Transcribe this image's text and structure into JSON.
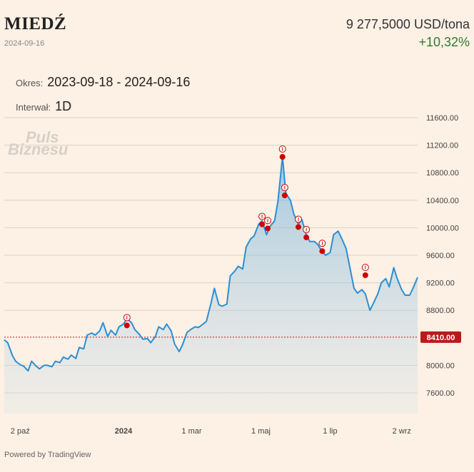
{
  "header": {
    "name": "MIEDŹ",
    "date": "2024-09-16",
    "price": "9 277,5000 USD/tona",
    "change": "+10,32%"
  },
  "controls": {
    "period_label": "Okres:",
    "period_value": "2023-09-18 - 2024-09-16",
    "interval_label": "Interwał:",
    "interval_value": "1D"
  },
  "watermark": {
    "line1": "Puls",
    "line2": "Biznesu"
  },
  "footer": "Powered by TradingView",
  "colors": {
    "line": "#2a8fd6",
    "marker": "#cc0000",
    "reference": "#b71c1c",
    "background": "#fdf0e4"
  },
  "chart_data": {
    "type": "area",
    "y_ticks": [
      "11600.00",
      "11200.00",
      "10800.00",
      "10400.00",
      "10000.00",
      "9600.00",
      "9200.00",
      "8800.00",
      "8000.00",
      "7600.00"
    ],
    "x_ticks": [
      {
        "label": "2 paź",
        "date": "2023-10-02"
      },
      {
        "label": "2024",
        "date": "2024-01-01"
      },
      {
        "label": "1 mar",
        "date": "2024-03-01"
      },
      {
        "label": "1 maj",
        "date": "2024-05-01"
      },
      {
        "label": "1 lip",
        "date": "2024-07-01"
      },
      {
        "label": "2 wrz",
        "date": "2024-09-02"
      }
    ],
    "reference_line": {
      "value": 8410,
      "label": "8410.00"
    },
    "ylim": [
      7300,
      11600
    ],
    "xlim": [
      "2023-09-18",
      "2024-09-16"
    ],
    "grid": true,
    "series": [
      {
        "points": [
          [
            "2023-09-18",
            8370
          ],
          [
            "2023-09-21",
            8330
          ],
          [
            "2023-09-25",
            8150
          ],
          [
            "2023-09-28",
            8060
          ],
          [
            "2023-10-02",
            8010
          ],
          [
            "2023-10-05",
            7990
          ],
          [
            "2023-10-09",
            7920
          ],
          [
            "2023-10-12",
            8060
          ],
          [
            "2023-10-16",
            7990
          ],
          [
            "2023-10-19",
            7950
          ],
          [
            "2023-10-23",
            8000
          ],
          [
            "2023-10-26",
            8000
          ],
          [
            "2023-10-30",
            7980
          ],
          [
            "2023-11-02",
            8060
          ],
          [
            "2023-11-06",
            8040
          ],
          [
            "2023-11-09",
            8120
          ],
          [
            "2023-11-13",
            8090
          ],
          [
            "2023-11-16",
            8150
          ],
          [
            "2023-11-20",
            8100
          ],
          [
            "2023-11-23",
            8260
          ],
          [
            "2023-11-27",
            8240
          ],
          [
            "2023-11-30",
            8440
          ],
          [
            "2023-12-04",
            8470
          ],
          [
            "2023-12-07",
            8440
          ],
          [
            "2023-12-11",
            8500
          ],
          [
            "2023-12-14",
            8620
          ],
          [
            "2023-12-18",
            8420
          ],
          [
            "2023-12-21",
            8510
          ],
          [
            "2023-12-25",
            8440
          ],
          [
            "2023-12-28",
            8560
          ],
          [
            "2024-01-01",
            8600
          ],
          [
            "2024-01-04",
            8680
          ],
          [
            "2024-01-08",
            8620
          ],
          [
            "2024-01-11",
            8520
          ],
          [
            "2024-01-15",
            8450
          ],
          [
            "2024-01-18",
            8380
          ],
          [
            "2024-01-22",
            8390
          ],
          [
            "2024-01-25",
            8330
          ],
          [
            "2024-01-29",
            8420
          ],
          [
            "2024-02-01",
            8560
          ],
          [
            "2024-02-05",
            8520
          ],
          [
            "2024-02-08",
            8600
          ],
          [
            "2024-02-12",
            8500
          ],
          [
            "2024-02-15",
            8310
          ],
          [
            "2024-02-19",
            8200
          ],
          [
            "2024-02-22",
            8300
          ],
          [
            "2024-02-26",
            8480
          ],
          [
            "2024-02-29",
            8520
          ],
          [
            "2024-03-04",
            8560
          ],
          [
            "2024-03-07",
            8550
          ],
          [
            "2024-03-11",
            8600
          ],
          [
            "2024-03-14",
            8640
          ],
          [
            "2024-03-18",
            8900
          ],
          [
            "2024-03-21",
            9120
          ],
          [
            "2024-03-25",
            8880
          ],
          [
            "2024-03-28",
            8860
          ],
          [
            "2024-04-01",
            8890
          ],
          [
            "2024-04-04",
            9300
          ],
          [
            "2024-04-08",
            9370
          ],
          [
            "2024-04-11",
            9440
          ],
          [
            "2024-04-15",
            9400
          ],
          [
            "2024-04-18",
            9720
          ],
          [
            "2024-04-22",
            9840
          ],
          [
            "2024-04-25",
            9880
          ],
          [
            "2024-04-29",
            10050
          ],
          [
            "2024-05-02",
            10100
          ],
          [
            "2024-05-06",
            9900
          ],
          [
            "2024-05-09",
            10020
          ],
          [
            "2024-05-13",
            10100
          ],
          [
            "2024-05-16",
            10380
          ],
          [
            "2024-05-20",
            11030
          ],
          [
            "2024-05-23",
            10500
          ],
          [
            "2024-05-27",
            10400
          ],
          [
            "2024-05-30",
            10200
          ],
          [
            "2024-06-03",
            10050
          ],
          [
            "2024-06-06",
            10120
          ],
          [
            "2024-06-10",
            9900
          ],
          [
            "2024-06-13",
            9800
          ],
          [
            "2024-06-17",
            9800
          ],
          [
            "2024-06-20",
            9760
          ],
          [
            "2024-06-24",
            9650
          ],
          [
            "2024-06-27",
            9600
          ],
          [
            "2024-07-01",
            9640
          ],
          [
            "2024-07-04",
            9900
          ],
          [
            "2024-07-08",
            9950
          ],
          [
            "2024-07-11",
            9850
          ],
          [
            "2024-07-15",
            9700
          ],
          [
            "2024-07-18",
            9450
          ],
          [
            "2024-07-22",
            9120
          ],
          [
            "2024-07-25",
            9050
          ],
          [
            "2024-07-29",
            9100
          ],
          [
            "2024-08-01",
            9040
          ],
          [
            "2024-08-05",
            8800
          ],
          [
            "2024-08-08",
            8900
          ],
          [
            "2024-08-12",
            9040
          ],
          [
            "2024-08-15",
            9200
          ],
          [
            "2024-08-19",
            9260
          ],
          [
            "2024-08-22",
            9140
          ],
          [
            "2024-08-26",
            9420
          ],
          [
            "2024-08-29",
            9260
          ],
          [
            "2024-09-02",
            9100
          ],
          [
            "2024-09-05",
            9020
          ],
          [
            "2024-09-09",
            9020
          ],
          [
            "2024-09-12",
            9120
          ],
          [
            "2024-09-16",
            9280
          ]
        ]
      }
    ],
    "markers": [
      {
        "date": "2024-01-04",
        "value": 8580
      },
      {
        "date": "2024-05-02",
        "value": 10050
      },
      {
        "date": "2024-05-07",
        "value": 9990
      },
      {
        "date": "2024-05-20",
        "value": 11030
      },
      {
        "date": "2024-05-22",
        "value": 10470
      },
      {
        "date": "2024-06-03",
        "value": 10010
      },
      {
        "date": "2024-06-10",
        "value": 9860
      },
      {
        "date": "2024-06-24",
        "value": 9660
      },
      {
        "date": "2024-08-01",
        "value": 9310
      }
    ]
  }
}
